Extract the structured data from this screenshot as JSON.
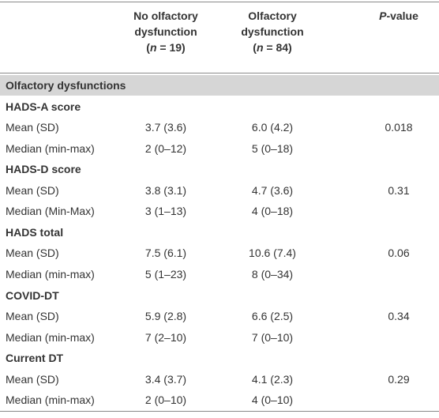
{
  "header": {
    "columns": [
      {
        "lines": [
          "No olfactory",
          "dysfunction"
        ],
        "n": [
          "(",
          "n",
          " = 19)"
        ]
      },
      {
        "lines": [
          "Olfactory",
          "dysfunction"
        ],
        "n": [
          "(",
          "n",
          " = 84)"
        ]
      }
    ],
    "p_value": [
      "P",
      "-value"
    ]
  },
  "section": "Olfactory dysfunctions",
  "groups": [
    {
      "title": "HADS-A score",
      "rows": [
        [
          "Mean (SD)",
          "3.7 (3.6)",
          "6.0 (4.2)",
          "0.018"
        ],
        [
          "Median (min-max)",
          "2 (0–12)",
          "5 (0–18)"
        ]
      ]
    },
    {
      "title": "HADS-D score",
      "rows": [
        [
          "Mean (SD)",
          "3.8 (3.1)",
          "4.7 (3.6)",
          "0.31"
        ],
        [
          "Median (Min-Max)",
          "3 (1–13)",
          "4 (0–18)"
        ]
      ]
    },
    {
      "title": "HADS total",
      "rows": [
        [
          "Mean (SD)",
          "7.5 (6.1)",
          "10.6 (7.4)",
          "0.06"
        ],
        [
          "Median (min-max)",
          "5 (1–23)",
          "8 (0–34)"
        ]
      ]
    },
    {
      "title": "COVID-DT",
      "rows": [
        [
          "Mean (SD)",
          "5.9 (2.8)",
          "6.6 (2.5)",
          "0.34"
        ],
        [
          "Median (min-max)",
          "7 (2–10)",
          "7 (0–10)"
        ]
      ]
    },
    {
      "title": "Current DT",
      "rows": [
        [
          "Mean (SD)",
          "3.4 (3.7)",
          "4.1 (2.3)",
          "0.29"
        ],
        [
          "Median (min-max)",
          "2 (0–10)",
          "4 (0–10)"
        ]
      ]
    }
  ]
}
